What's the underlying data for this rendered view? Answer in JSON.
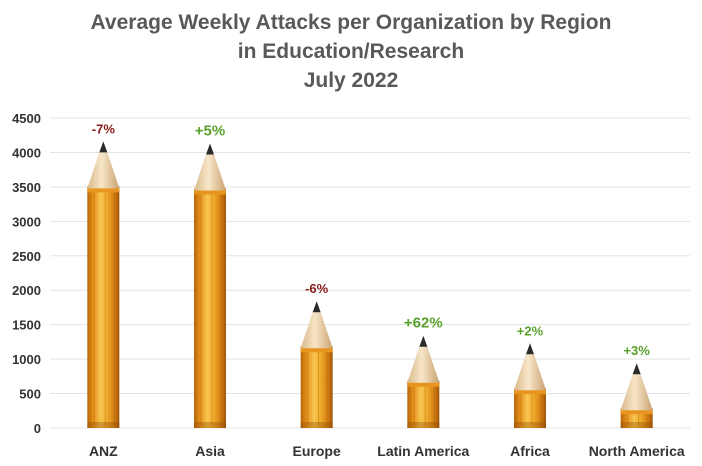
{
  "chart_data": {
    "type": "bar",
    "title_lines": [
      "Average Weekly Attacks per Organization by Region",
      "in Education/Research",
      "July 2022"
    ],
    "categories": [
      "ANZ",
      "Asia",
      "Europe",
      "Latin America",
      "Africa",
      "North America"
    ],
    "values": [
      4160,
      4130,
      1840,
      1340,
      1230,
      940
    ],
    "changes": [
      "-7%",
      "+5%",
      "-6%",
      "+62%",
      "+2%",
      "+3%"
    ],
    "change_colors": [
      "#8b1a1a",
      "#5aa02c",
      "#8b1a1a",
      "#5aa02c",
      "#5aa02c",
      "#5aa02c"
    ],
    "ylim": [
      0,
      4500
    ],
    "yticks": [
      0,
      500,
      1000,
      1500,
      2000,
      2500,
      3000,
      3500,
      4000,
      4500
    ],
    "xlabel": "",
    "ylabel": "",
    "grid": true,
    "bar_style": "pencil"
  }
}
